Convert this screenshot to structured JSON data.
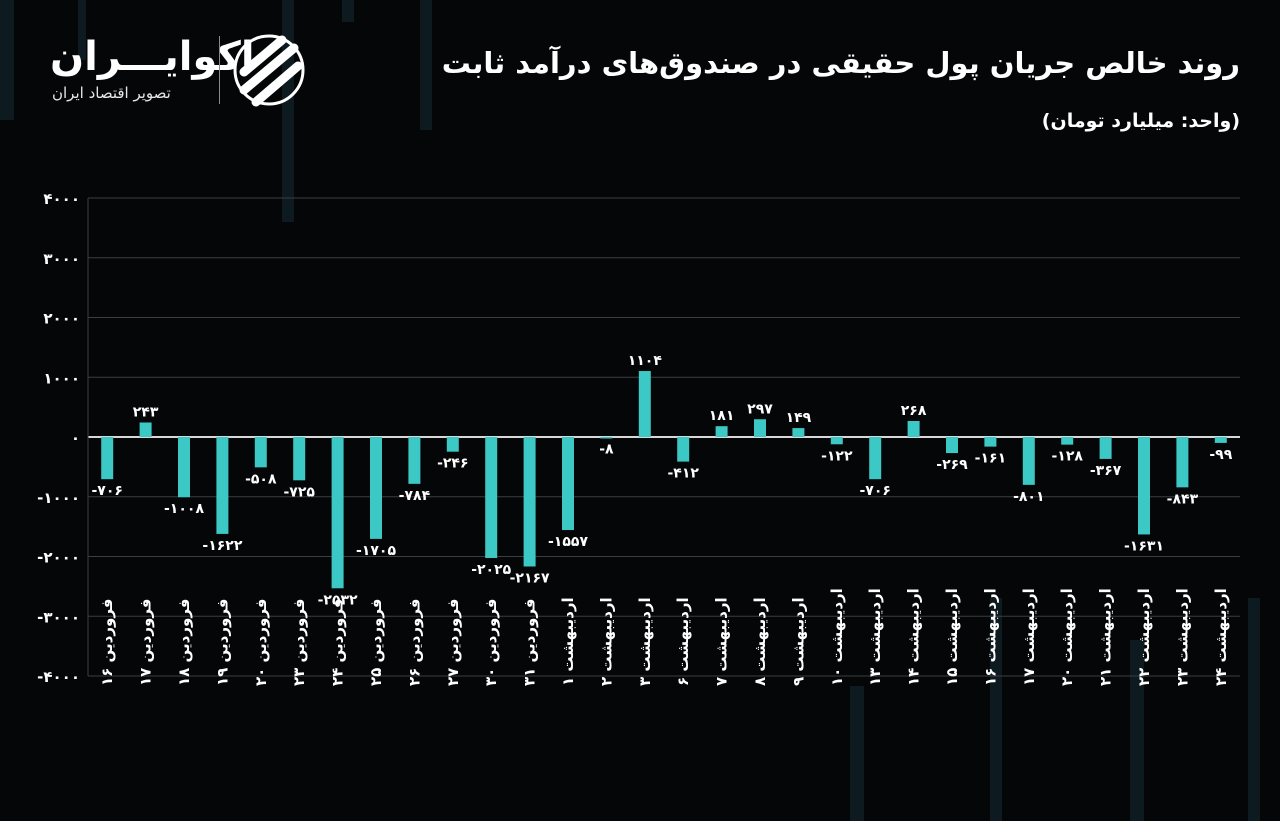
{
  "header": {
    "title": "روند خالص جریان پول حقیقی در صندوق‌های درآمد ثابت",
    "unit": "(واحد: میلیارد تومان)"
  },
  "logo": {
    "name": "اکوایـــران",
    "tagline": "تصویر اقتصاد ایران",
    "icon": "ecoiran-stripes-icon"
  },
  "colors": {
    "background": "#050607",
    "bar": "#3cc8c4",
    "grid": "#3a3f42",
    "text": "#ffffff"
  },
  "chart_data": {
    "type": "bar",
    "title": "روند خالص جریان پول حقیقی در صندوق‌های درآمد ثابت",
    "ylabel": "(واحد: میلیارد تومان)",
    "ylim": [
      -4000,
      4000
    ],
    "yticks": [
      4000,
      3000,
      2000,
      1000,
      0,
      -1000,
      -2000,
      -3000,
      -4000
    ],
    "ytick_labels": [
      "۴۰۰۰",
      "۳۰۰۰",
      "۲۰۰۰",
      "۱۰۰۰",
      "۰",
      "-۱۰۰۰",
      "-۲۰۰۰",
      "-۳۰۰۰",
      "-۴۰۰۰"
    ],
    "grid": true,
    "categories": [
      "فروردین ۱۶",
      "فروردین ۱۷",
      "فروردین ۱۸",
      "فروردین ۱۹",
      "فروردین ۲۰",
      "فروردین ۲۳",
      "فروردین ۲۴",
      "فروردین ۲۵",
      "فروردین ۲۶",
      "فروردین ۲۷",
      "فروردین ۳۰",
      "فروردین ۳۱",
      "اردیبهشت ۱",
      "اردیبهشت ۲",
      "اردیبهشت ۳",
      "اردیبهشت ۶",
      "اردیبهشت ۷",
      "اردیبهشت ۸",
      "اردیبهشت ۹",
      "اردیبهشت ۱۰",
      "اردیبهشت ۱۳",
      "اردیبهشت ۱۴",
      "اردیبهشت ۱۵",
      "اردیبهشت ۱۶",
      "اردیبهشت ۱۷",
      "اردیبهشت ۲۰",
      "اردیبهشت ۲۱",
      "اردیبهشت ۲۲",
      "اردیبهشت ۲۳",
      "اردیبهشت ۲۴"
    ],
    "values": [
      -706,
      243,
      -1008,
      -1622,
      -508,
      -725,
      -2532,
      -1705,
      -784,
      -246,
      -2025,
      -2167,
      -1557,
      -8,
      1104,
      -412,
      181,
      297,
      149,
      -122,
      -706,
      268,
      -269,
      -161,
      -801,
      -128,
      -367,
      -1631,
      -843,
      -99
    ],
    "value_labels": [
      "-۷۰۶",
      "۲۴۳",
      "-۱۰۰۸",
      "-۱۶۲۲",
      "-۵۰۸",
      "-۷۲۵",
      "-۲۵۳۲",
      "-۱۷۰۵",
      "-۷۸۴",
      "-۲۴۶",
      "-۲۰۲۵",
      "-۲۱۶۷",
      "-۱۵۵۷",
      "-۸",
      "۱۱۰۴",
      "-۴۱۲",
      "۱۸۱",
      "۲۹۷",
      "۱۴۹",
      "-۱۲۲",
      "-۷۰۶",
      "۲۶۸",
      "-۲۶۹",
      "-۱۶۱",
      "-۸۰۱",
      "-۱۲۸",
      "-۳۶۷",
      "-۱۶۳۱",
      "-۸۴۳",
      "-۹۹"
    ]
  }
}
